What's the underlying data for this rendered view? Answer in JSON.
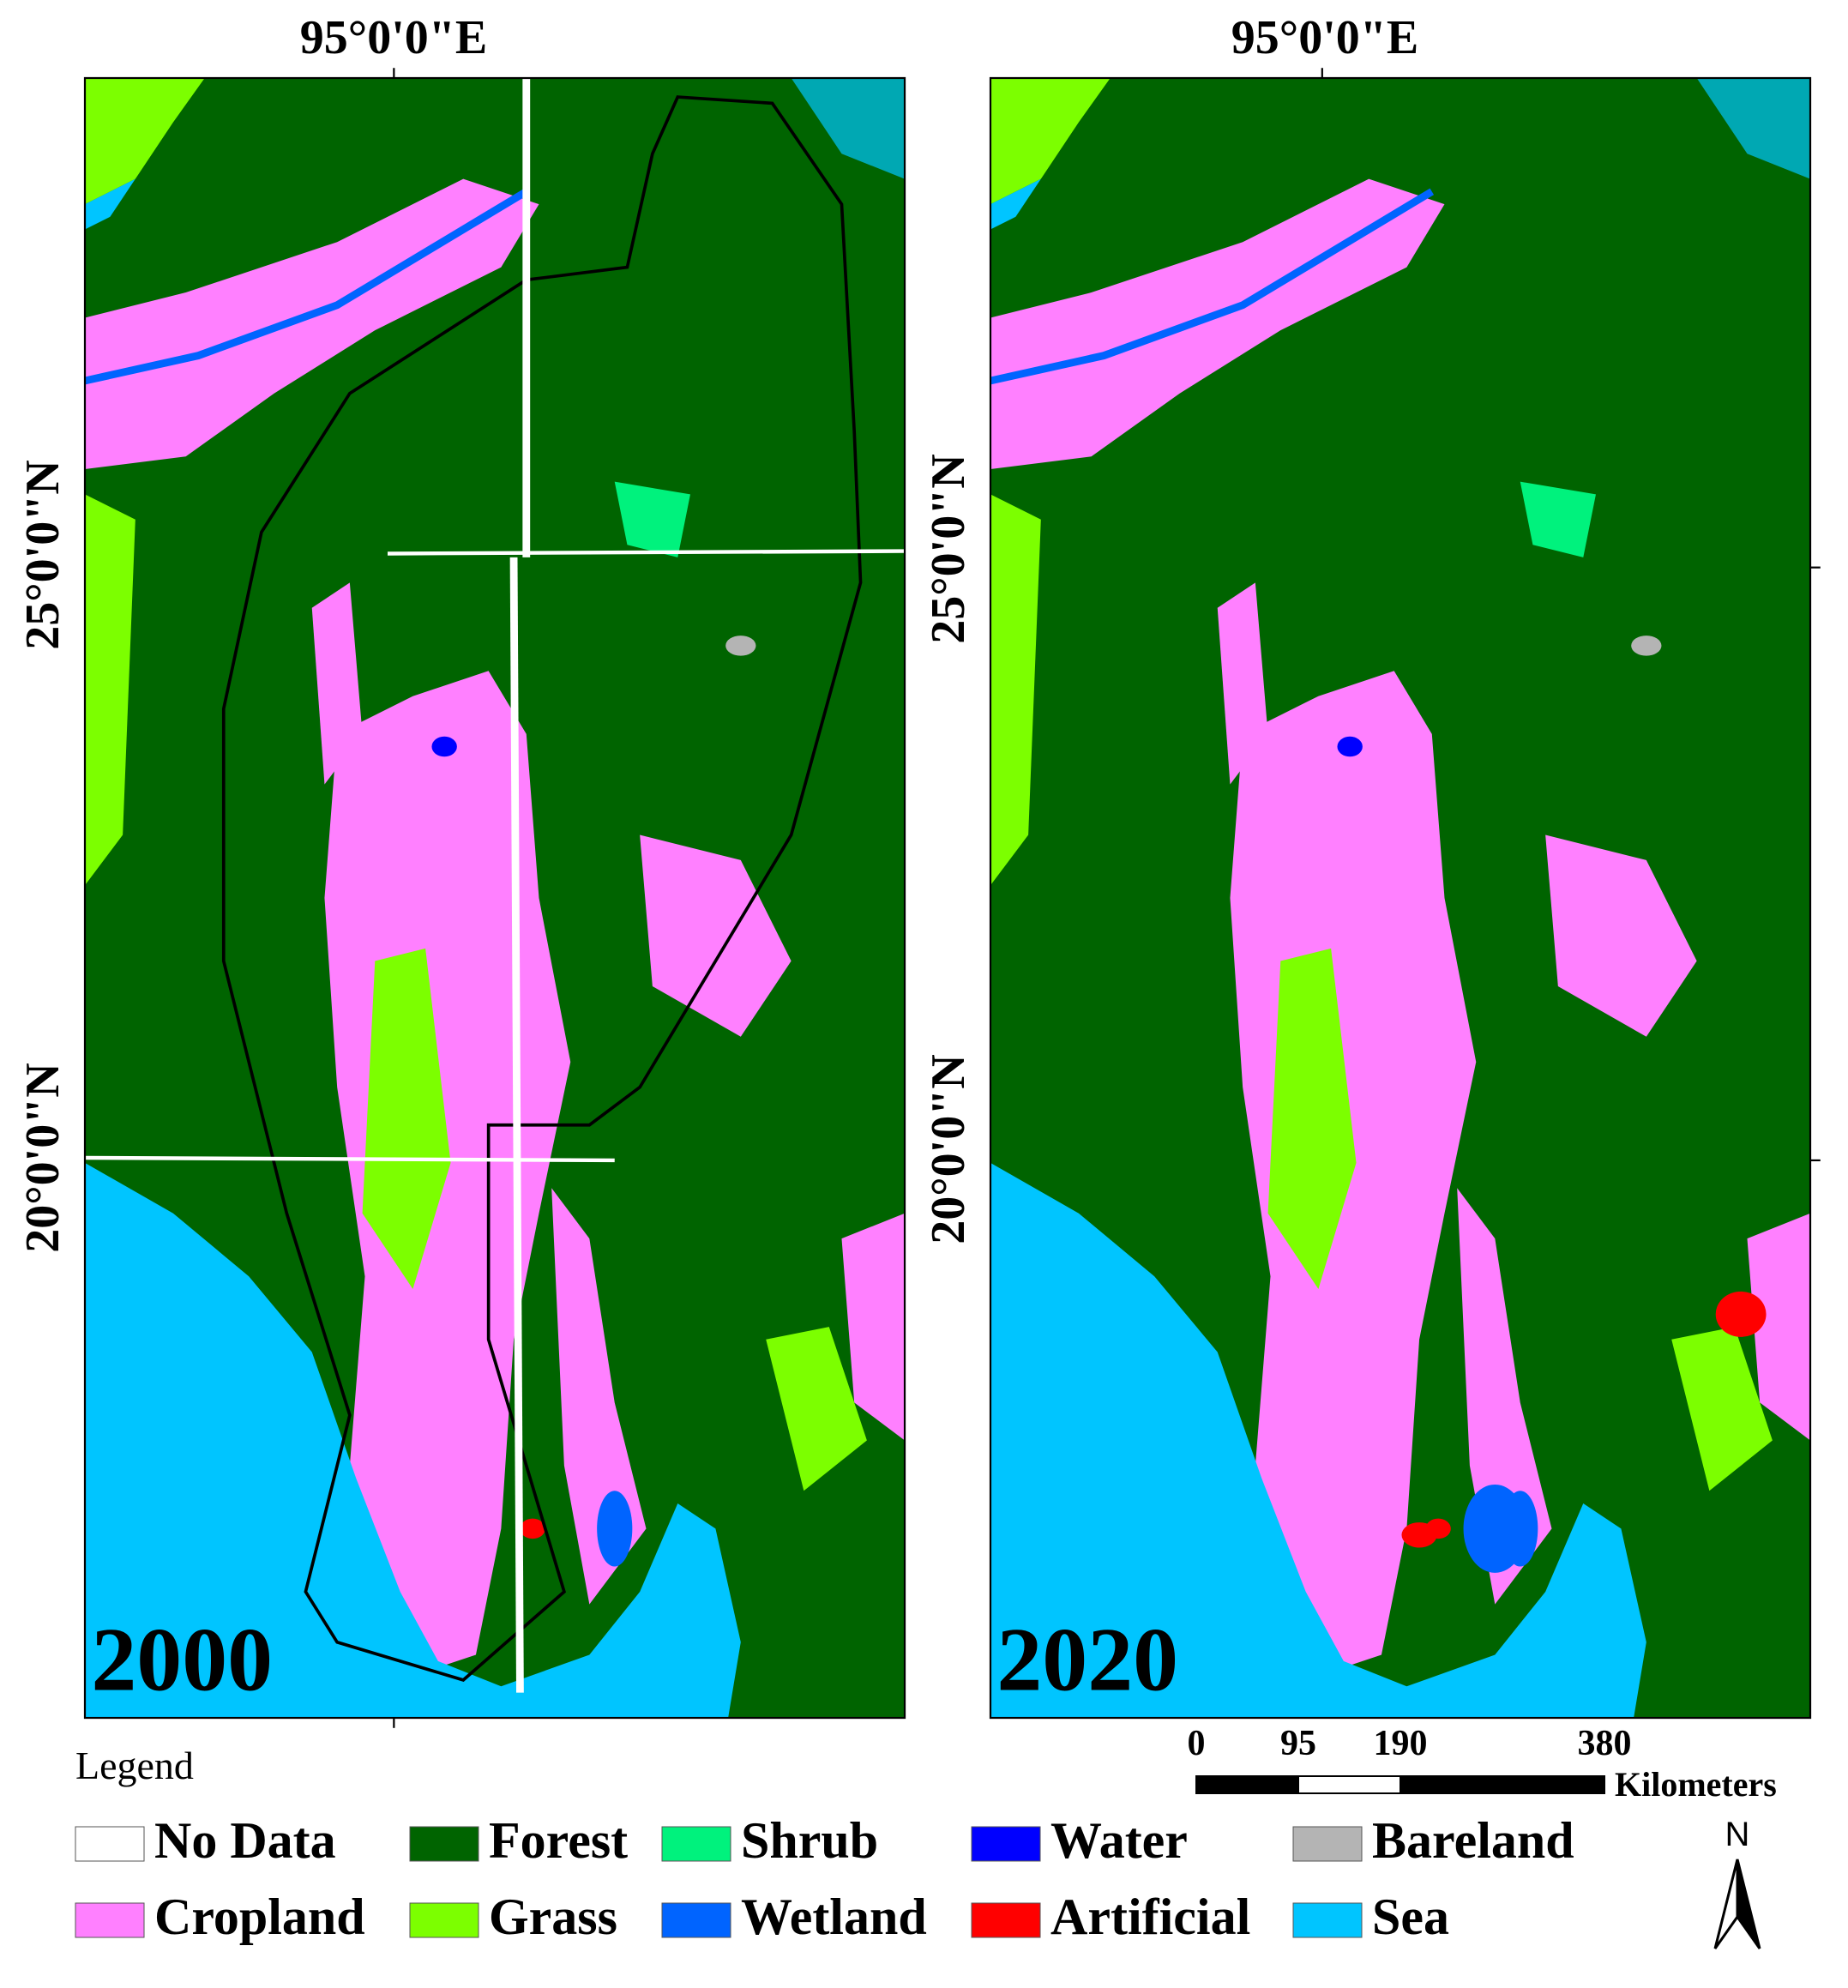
{
  "panels": [
    {
      "year": "2000"
    },
    {
      "year": "2020"
    }
  ],
  "graticule": {
    "longitude": "95°0'0\"E",
    "latitudes": [
      "25°0'0\"N",
      "20°0'0\"N"
    ]
  },
  "legend": {
    "title": "Legend",
    "items": [
      {
        "name": "No Data",
        "color": "#ffffff"
      },
      {
        "name": "Forest",
        "color": "#006400"
      },
      {
        "name": "Shrub",
        "color": "#00f27d"
      },
      {
        "name": "Water",
        "color": "#0000ff"
      },
      {
        "name": "Bareland",
        "color": "#b4b4b4"
      },
      {
        "name": "Cropland",
        "color": "#ff80ff"
      },
      {
        "name": "Grass",
        "color": "#7cff00"
      },
      {
        "name": "Wetland",
        "color": "#0064ff"
      },
      {
        "name": "Artificial",
        "color": "#ff0000"
      },
      {
        "name": "Sea",
        "color": "#00c5ff"
      }
    ]
  },
  "scale_bar": {
    "ticks": [
      0,
      95,
      190,
      380
    ],
    "unit": "Kilometers"
  },
  "north_arrow": "N"
}
